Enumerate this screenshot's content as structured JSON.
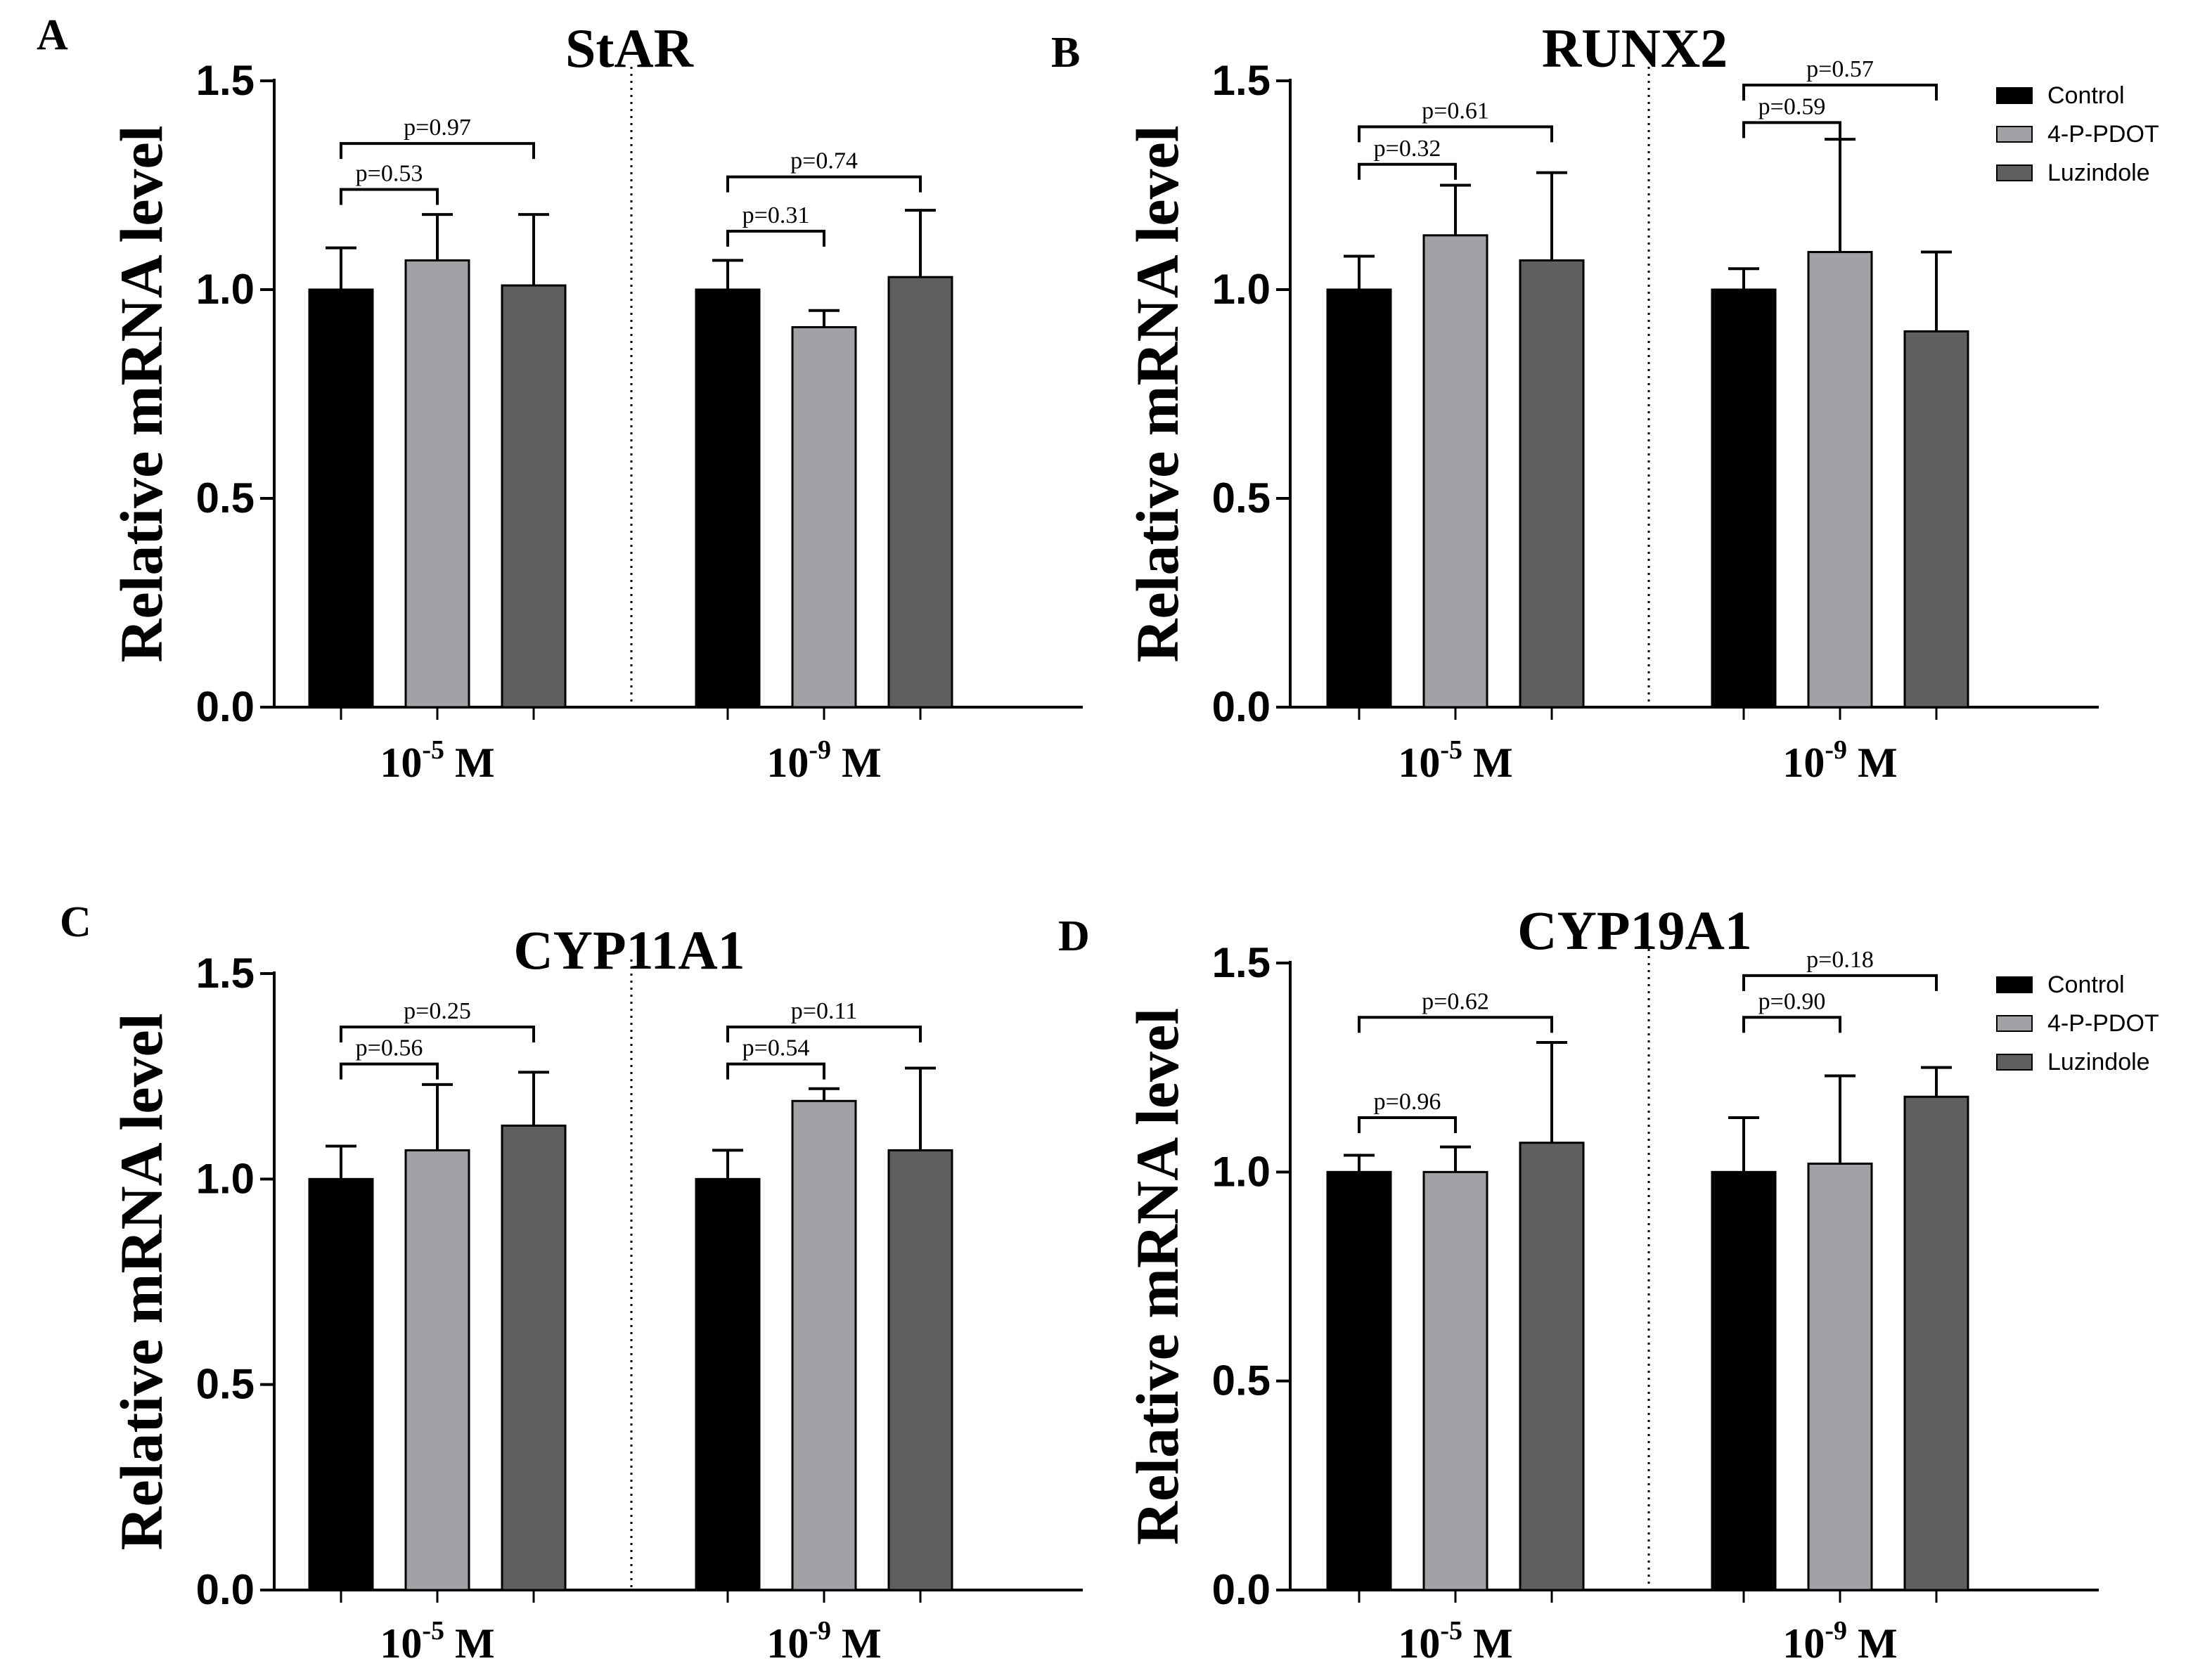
{
  "colors": {
    "control": "#000000",
    "4-P-PDOT": "#a2a2a6",
    "Luzindole": "#5f5f5f"
  },
  "legend": [
    "Control",
    "4-P-PDOT",
    "Luzindole"
  ],
  "y_tick_labels": [
    "0.0",
    "0.5",
    "1.0",
    "1.5"
  ],
  "chart_data": [
    {
      "type": "bar",
      "panel": "A",
      "title": "StAR",
      "ylabel": "Relative mRNA level",
      "ylim": [
        0,
        1.5
      ],
      "categories": [
        {
          "base": "10",
          "exp": "-5",
          "unit": " M"
        },
        {
          "base": "10",
          "exp": "-9",
          "unit": " M"
        }
      ],
      "series": [
        {
          "name": "Control",
          "values": [
            1.0,
            1.0
          ],
          "errors": [
            0.1,
            0.07
          ]
        },
        {
          "name": "4-P-PDOT",
          "values": [
            1.07,
            0.91
          ],
          "errors": [
            0.11,
            0.04
          ]
        },
        {
          "name": "Luzindole",
          "values": [
            1.01,
            1.03
          ],
          "errors": [
            0.17,
            0.16
          ]
        }
      ],
      "annotations": [
        {
          "group": 0,
          "from": 0,
          "to": 1,
          "text": "p=0.53",
          "level": 1.24
        },
        {
          "group": 0,
          "from": 0,
          "to": 2,
          "text": "p=0.97",
          "level": 1.35
        },
        {
          "group": 1,
          "from": 0,
          "to": 1,
          "text": "p=0.31",
          "level": 1.14
        },
        {
          "group": 1,
          "from": 0,
          "to": 2,
          "text": "p=0.74",
          "level": 1.27
        }
      ],
      "legend": false
    },
    {
      "type": "bar",
      "panel": "B",
      "title": "RUNX2",
      "ylabel": "Relative mRNA level",
      "ylim": [
        0,
        1.5
      ],
      "categories": [
        {
          "base": "10",
          "exp": "-5",
          "unit": " M"
        },
        {
          "base": "10",
          "exp": "-9",
          "unit": " M"
        }
      ],
      "series": [
        {
          "name": "Control",
          "values": [
            1.0,
            1.0
          ],
          "errors": [
            0.08,
            0.05
          ]
        },
        {
          "name": "4-P-PDOT",
          "values": [
            1.13,
            1.09
          ],
          "errors": [
            0.12,
            0.27
          ]
        },
        {
          "name": "Luzindole",
          "values": [
            1.07,
            0.9
          ],
          "errors": [
            0.21,
            0.19
          ]
        }
      ],
      "annotations": [
        {
          "group": 0,
          "from": 0,
          "to": 1,
          "text": "p=0.32",
          "level": 1.3
        },
        {
          "group": 0,
          "from": 0,
          "to": 2,
          "text": "p=0.61",
          "level": 1.39
        },
        {
          "group": 1,
          "from": 0,
          "to": 1,
          "text": "p=0.59",
          "level": 1.4
        },
        {
          "group": 1,
          "from": 0,
          "to": 2,
          "text": "p=0.57",
          "level": 1.49
        }
      ],
      "legend": true
    },
    {
      "type": "bar",
      "panel": "C",
      "title": "CYP11A1",
      "ylabel": "Relative mRNA level",
      "ylim": [
        0,
        1.5
      ],
      "categories": [
        {
          "base": "10",
          "exp": "-5",
          "unit": " M"
        },
        {
          "base": "10",
          "exp": "-9",
          "unit": " M"
        }
      ],
      "series": [
        {
          "name": "Control",
          "values": [
            1.0,
            1.0
          ],
          "errors": [
            0.08,
            0.07
          ]
        },
        {
          "name": "4-P-PDOT",
          "values": [
            1.07,
            1.19
          ],
          "errors": [
            0.16,
            0.03
          ]
        },
        {
          "name": "Luzindole",
          "values": [
            1.13,
            1.07
          ],
          "errors": [
            0.13,
            0.2
          ]
        }
      ],
      "annotations": [
        {
          "group": 0,
          "from": 0,
          "to": 1,
          "text": "p=0.56",
          "level": 1.28
        },
        {
          "group": 0,
          "from": 0,
          "to": 2,
          "text": "p=0.25",
          "level": 1.37
        },
        {
          "group": 1,
          "from": 0,
          "to": 1,
          "text": "p=0.54",
          "level": 1.28
        },
        {
          "group": 1,
          "from": 0,
          "to": 2,
          "text": "p=0.11",
          "level": 1.37
        }
      ],
      "legend": false
    },
    {
      "type": "bar",
      "panel": "D",
      "title": "CYP19A1",
      "ylabel": "Relative mRNA level",
      "ylim": [
        0,
        1.5
      ],
      "categories": [
        {
          "base": "10",
          "exp": "-5",
          "unit": " M"
        },
        {
          "base": "10",
          "exp": "-9",
          "unit": " M"
        }
      ],
      "series": [
        {
          "name": "Control",
          "values": [
            1.0,
            1.0
          ],
          "errors": [
            0.04,
            0.13
          ]
        },
        {
          "name": "4-P-PDOT",
          "values": [
            1.0,
            1.02
          ],
          "errors": [
            0.06,
            0.21
          ]
        },
        {
          "name": "Luzindole",
          "values": [
            1.07,
            1.18
          ],
          "errors": [
            0.24,
            0.07
          ]
        }
      ],
      "annotations": [
        {
          "group": 0,
          "from": 0,
          "to": 1,
          "text": "p=0.96",
          "level": 1.13
        },
        {
          "group": 0,
          "from": 0,
          "to": 2,
          "text": "p=0.62",
          "level": 1.37
        },
        {
          "group": 1,
          "from": 0,
          "to": 1,
          "text": "p=0.90",
          "level": 1.37
        },
        {
          "group": 1,
          "from": 0,
          "to": 2,
          "text": "p=0.18",
          "level": 1.47
        }
      ],
      "legend": true
    }
  ]
}
